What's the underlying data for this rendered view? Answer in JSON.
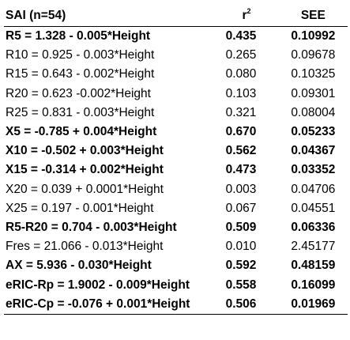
{
  "table": {
    "headers": {
      "equation": "SAI (n=54)",
      "r2_base": "r",
      "r2_sup": "2",
      "see": "SEE"
    },
    "rows": [
      {
        "equation": "R5 = 1.328 - 0.005*Height",
        "r2": "0.435",
        "see": "0.10992",
        "bold": true
      },
      {
        "equation": "R10 = 0.925 - 0.003*Height",
        "r2": "0.265",
        "see": "0.09678",
        "bold": false
      },
      {
        "equation": "R15 = 0.643 - 0.002*Height",
        "r2": "0.080",
        "see": "0.10325",
        "bold": false
      },
      {
        "equation": "R20 = 0.623 -0.002*Height",
        "r2": "0.103",
        "see": "0.09301",
        "bold": false
      },
      {
        "equation": "R25 = 0.831 - 0.003*Height",
        "r2": "0.321",
        "see": "0.08004",
        "bold": false
      },
      {
        "equation": "X5 = -0.785 + 0.004*Height",
        "r2": "0.670",
        "see": "0.05233",
        "bold": true
      },
      {
        "equation": "X10 = -0.502 + 0.003*Height",
        "r2": "0.562",
        "see": "0.04367",
        "bold": true
      },
      {
        "equation": "X15 = -0.314 + 0.002*Height",
        "r2": "0.473",
        "see": "0.03352",
        "bold": true
      },
      {
        "equation": "X20 = 0.039 + 0.0001*Height",
        "r2": "0.003",
        "see": "0.04706",
        "bold": false
      },
      {
        "equation": "X25 = 0.197 - 0.001*Height",
        "r2": "0.067",
        "see": "0.04551",
        "bold": false
      },
      {
        "equation": "R5-R20 = 0.704 - 0.003*Height",
        "r2": "0.509",
        "see": "0.06336",
        "bold": true
      },
      {
        "equation": "Fres = 21.066 - 0.013*Height",
        "r2": "0.010",
        "see": "2.45177",
        "bold": false
      },
      {
        "equation": "AX = 5.936 - 0.030*Height",
        "r2": "0.592",
        "see": "0.48159",
        "bold": true
      },
      {
        "equation": "eRIC-Rp = 1.9002 - 0.009*Height",
        "r2": "0.558",
        "see": "0.16099",
        "bold": true
      },
      {
        "equation": "eRIC-Cp = -0.076 + 0.001*Height",
        "r2": "0.506",
        "see": "0.01969",
        "bold": true
      }
    ]
  }
}
